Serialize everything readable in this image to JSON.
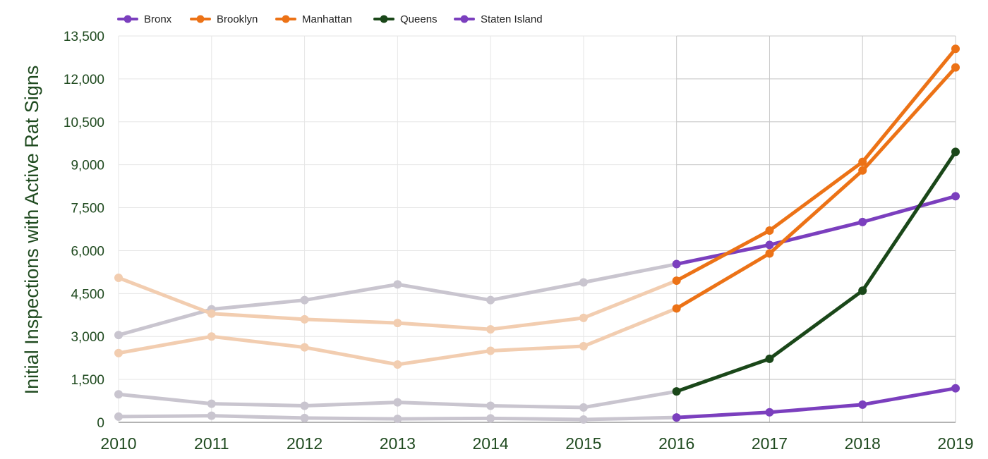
{
  "chart_data": {
    "type": "line",
    "title": "",
    "xlabel": "",
    "ylabel": "Initial Inspections with Active Rat Signs",
    "x": [
      "2010",
      "2011",
      "2012",
      "2013",
      "2014",
      "2015",
      "2016",
      "2017",
      "2018",
      "2019"
    ],
    "ylim": [
      0,
      13500
    ],
    "yticks": [
      0,
      1500,
      3000,
      4500,
      6000,
      7500,
      9000,
      10500,
      12000,
      13500
    ],
    "ytick_labels": [
      "0",
      "1,500",
      "3,000",
      "4,500",
      "6,000",
      "7,500",
      "9,000",
      "10,500",
      "12,000",
      "13,500"
    ],
    "grid": true,
    "legend_position": "top-left",
    "highlight_from": "2016",
    "faded_colors": {
      "purple": "#c9c5cf",
      "orange": "#f2cdb0",
      "green": "#c9c5cf"
    },
    "series": [
      {
        "name": "Bronx",
        "color": "#7b3fbe",
        "fade": "purple",
        "values": [
          3050,
          3950,
          4270,
          4820,
          4270,
          4890,
          5530,
          6200,
          7000,
          7900
        ]
      },
      {
        "name": "Brooklyn",
        "color": "#ec7216",
        "fade": "orange",
        "values": [
          5050,
          3800,
          3600,
          3470,
          3250,
          3650,
          4950,
          6700,
          9100,
          13050
        ]
      },
      {
        "name": "Manhattan",
        "color": "#ec7216",
        "fade": "orange",
        "values": [
          2420,
          3000,
          2620,
          2020,
          2500,
          2660,
          3980,
          5900,
          8800,
          12400
        ]
      },
      {
        "name": "Queens",
        "color": "#1a4719",
        "fade": "green",
        "values": [
          980,
          650,
          580,
          700,
          580,
          520,
          1080,
          2220,
          4600,
          9450
        ]
      },
      {
        "name": "Staten Island",
        "color": "#7b3fbe",
        "fade": "purple",
        "values": [
          200,
          230,
          150,
          120,
          140,
          100,
          170,
          350,
          620,
          1190
        ]
      }
    ]
  }
}
